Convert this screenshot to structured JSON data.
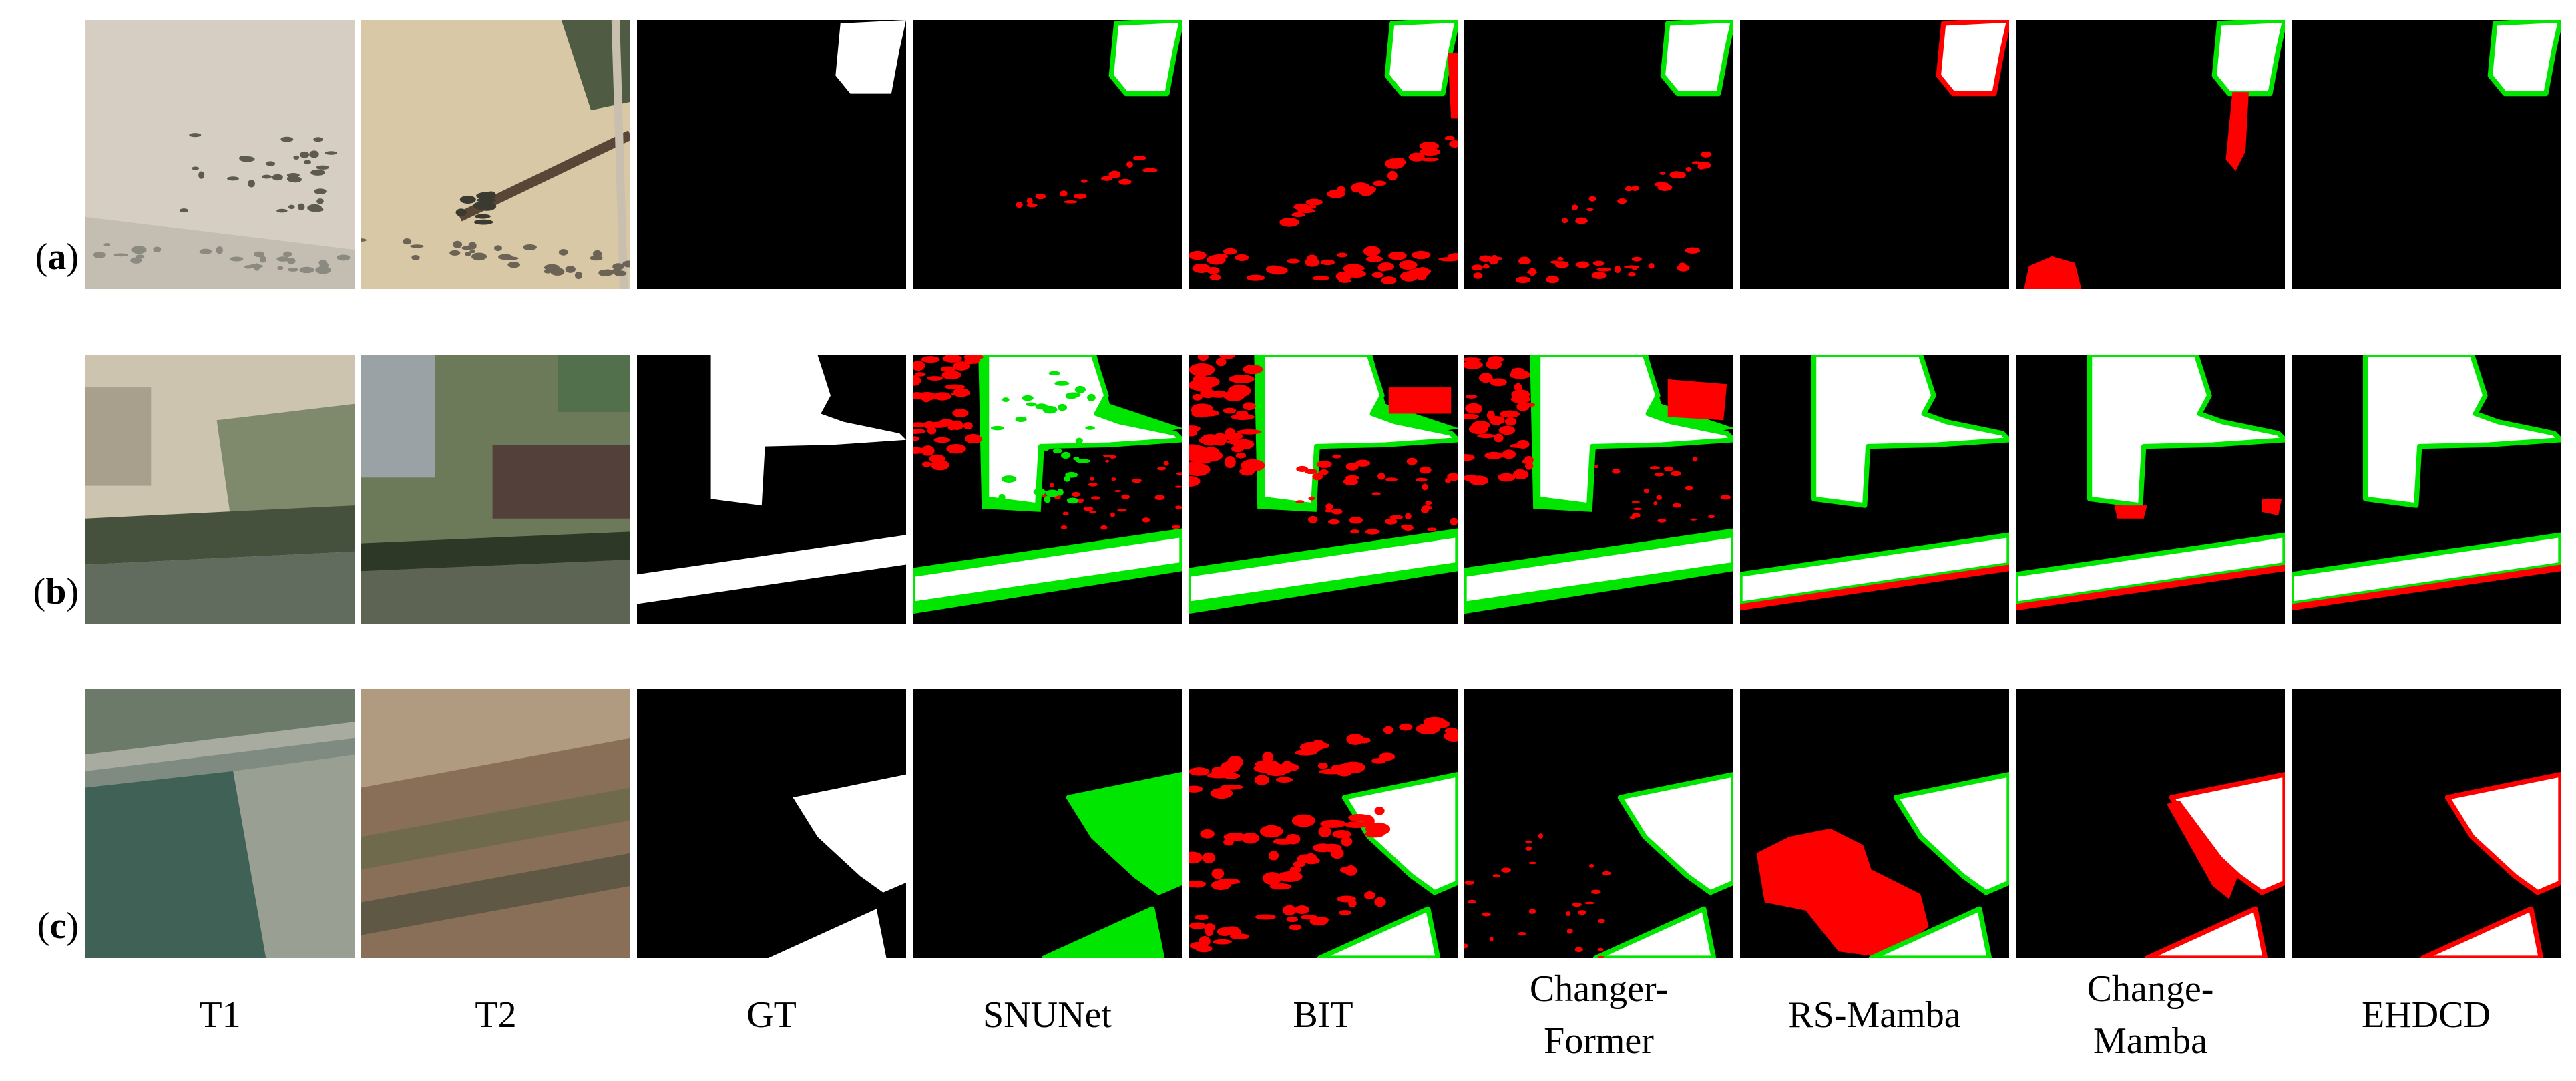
{
  "rows": [
    {
      "open": "(",
      "letter": "a",
      "close": ")"
    },
    {
      "open": "(",
      "letter": "b",
      "close": ")"
    },
    {
      "open": "(",
      "letter": "c",
      "close": ")"
    }
  ],
  "columns": [
    {
      "lines": [
        "T1"
      ]
    },
    {
      "lines": [
        "T2"
      ]
    },
    {
      "lines": [
        "GT"
      ]
    },
    {
      "lines": [
        "SNUNet"
      ]
    },
    {
      "lines": [
        "BIT"
      ]
    },
    {
      "lines": [
        "Changer-",
        "Former"
      ]
    },
    {
      "lines": [
        "RS-Mamba"
      ]
    },
    {
      "lines": [
        "Change-",
        "Mamba"
      ]
    },
    {
      "lines": [
        "EHDCD"
      ]
    }
  ]
}
